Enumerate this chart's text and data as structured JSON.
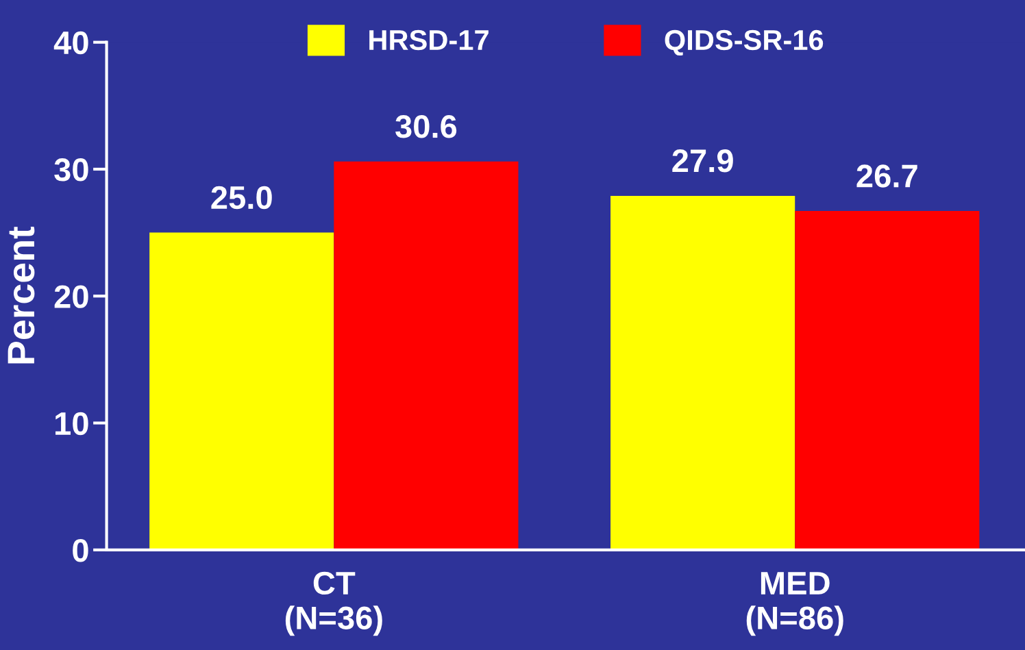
{
  "chart_data": {
    "type": "bar",
    "categories": [
      "CT\n(N=36)",
      "MED\n(N=86)"
    ],
    "ylabel": "Percent",
    "series": [
      {
        "name": "HRSD-17",
        "color": "#ffff00",
        "values": [
          25.0,
          27.9
        ],
        "value_labels": [
          "25.0",
          "27.9"
        ]
      },
      {
        "name": "QIDS-SR-16",
        "color": "#ff0000",
        "values": [
          30.6,
          26.7
        ],
        "value_labels": [
          "30.6",
          "26.7"
        ]
      }
    ],
    "ylim": [
      0,
      40
    ],
    "yticks": [
      0,
      10,
      20,
      30,
      40
    ],
    "grid": false,
    "legend": "top"
  }
}
